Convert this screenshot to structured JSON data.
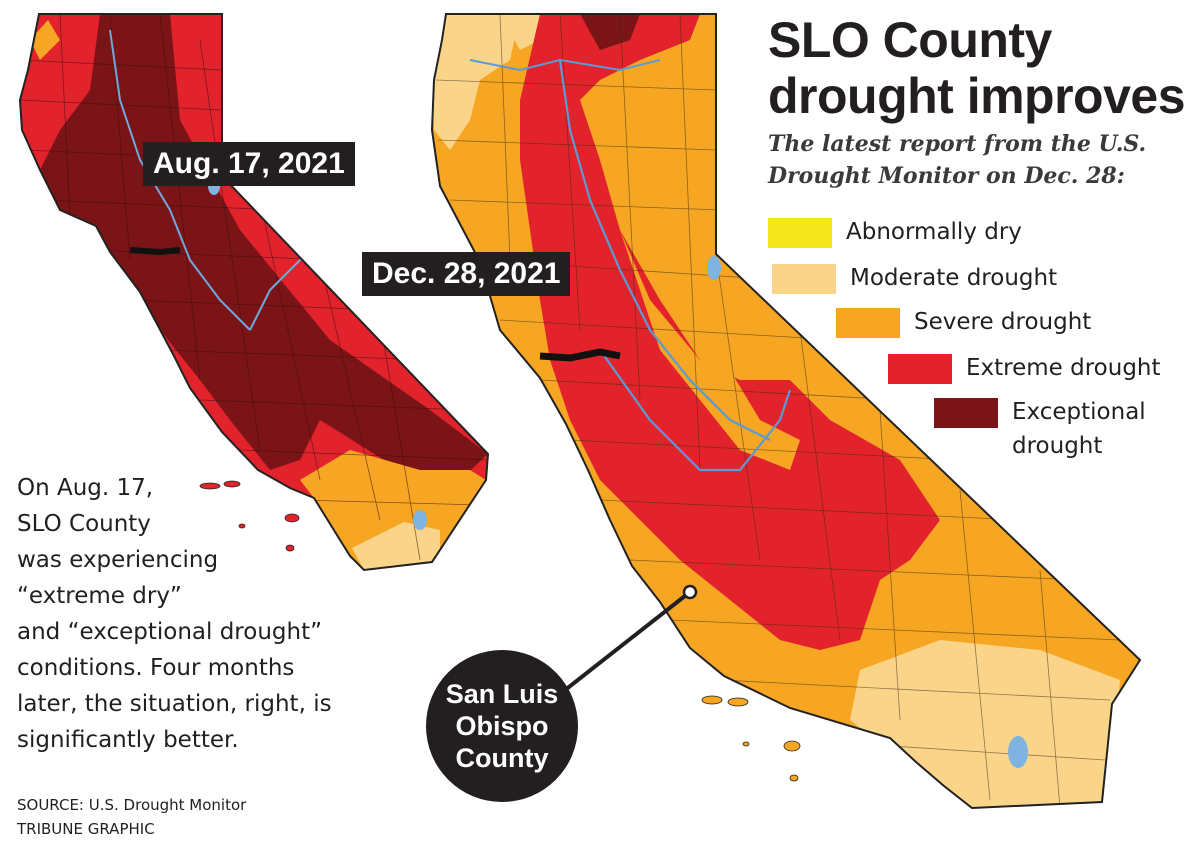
{
  "title_lines": [
    "SLO County",
    "drought improves"
  ],
  "subtitle_lines": [
    "The latest report from the U.S.",
    "Drought Monitor on Dec. 28:"
  ],
  "colors": {
    "abnormally_dry": "#f2e51c",
    "moderate": "#fad589",
    "severe": "#f6a623",
    "extreme": "#e3232c",
    "exceptional": "#7b1416",
    "water": "#7fb3e0",
    "border": "#222222",
    "text": "#231f20"
  },
  "legend": [
    {
      "lines": [
        "Abnormally dry"
      ],
      "color": "#f2e51c"
    },
    {
      "lines": [
        "Moderate drought"
      ],
      "color": "#fad589"
    },
    {
      "lines": [
        "Severe drought"
      ],
      "color": "#f6a623"
    },
    {
      "lines": [
        "Extreme drought"
      ],
      "color": "#e3232c"
    },
    {
      "lines": [
        "Exceptional",
        "drought"
      ],
      "color": "#7b1416"
    }
  ],
  "maps": {
    "left_label": "Aug. 17, 2021",
    "right_label": "Dec. 28, 2021"
  },
  "note_lines": [
    "On Aug. 17,",
    "SLO County",
    "was experiencing",
    "“extreme dry”",
    "and “exceptional drought”",
    "conditions. Four months",
    "later, the situation, right, is",
    "significantly better."
  ],
  "source_lines": [
    "SOURCE: U.S. Drought Monitor",
    "TRIBUNE GRAPHIC"
  ],
  "callout_lines": [
    "San Luis",
    "Obispo",
    "County"
  ]
}
